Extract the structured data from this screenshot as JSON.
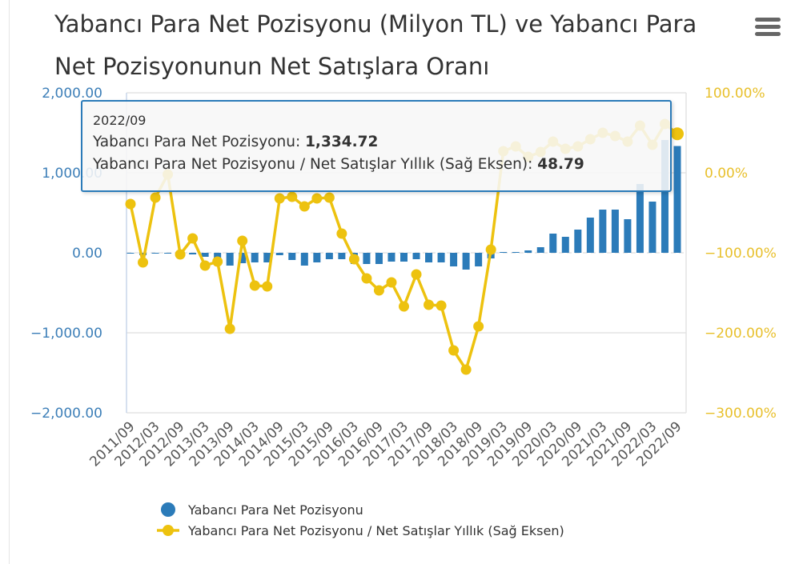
{
  "chart_data": {
    "type": "bar+line",
    "title": "Yabancı Para Net Pozisyonu (Milyon TL) ve Yabancı Para Net Pozisyonunun Net Satışlara Oranı",
    "categories": [
      "2011/09",
      "2011/12",
      "2012/03",
      "2012/06",
      "2012/09",
      "2012/12",
      "2013/03",
      "2013/06",
      "2013/09",
      "2013/12",
      "2014/03",
      "2014/06",
      "2014/09",
      "2014/12",
      "2015/03",
      "2015/06",
      "2015/09",
      "2015/12",
      "2016/03",
      "2016/06",
      "2016/09",
      "2016/12",
      "2017/03",
      "2017/06",
      "2017/09",
      "2017/12",
      "2018/03",
      "2018/06",
      "2018/09",
      "2018/12",
      "2019/03",
      "2019/06",
      "2019/09",
      "2019/12",
      "2020/03",
      "2020/06",
      "2020/09",
      "2020/12",
      "2021/03",
      "2021/06",
      "2021/09",
      "2021/12",
      "2022/03",
      "2022/06",
      "2022/09"
    ],
    "x_tick_labels": [
      "2011/09",
      "2012/03",
      "2012/09",
      "2013/03",
      "2013/09",
      "2014/03",
      "2014/09",
      "2015/03",
      "2015/09",
      "2016/03",
      "2016/09",
      "2017/03",
      "2017/09",
      "2018/03",
      "2018/09",
      "2019/03",
      "2019/09",
      "2020/03",
      "2020/09",
      "2021/03",
      "2021/09",
      "2022/03",
      "2022/09"
    ],
    "left_axis": {
      "ylim": [
        -2000,
        2000
      ],
      "ticks": [
        "2,000.00",
        "1,000.00",
        "0.00",
        "−1,000.00",
        "−2,000.00"
      ],
      "color": "#3d7fb8"
    },
    "right_axis": {
      "ylim": [
        -300,
        100
      ],
      "ticks": [
        "100.00%",
        "0.00%",
        "−100.00%",
        "−200.00%",
        "−300.00%"
      ],
      "color": "#e8c02c"
    },
    "series": [
      {
        "name": "Yabancı Para Net Pozisyonu",
        "type": "bar",
        "axis": "left",
        "color": "#2b7bb9",
        "values": [
          -10,
          -30,
          0,
          0,
          -10,
          -20,
          -50,
          -100,
          -160,
          -130,
          -120,
          -120,
          -30,
          -90,
          -160,
          -120,
          -80,
          -80,
          -140,
          -140,
          -140,
          -110,
          -110,
          -80,
          -120,
          -120,
          -170,
          -210,
          -170,
          -70,
          10,
          10,
          30,
          70,
          240,
          200,
          290,
          440,
          540,
          540,
          420,
          860,
          640,
          1410,
          1334.72
        ]
      },
      {
        "name": "Yabancı Para Net Pozisyonu / Net Satışlar Yıllık (Sağ Eksen)",
        "type": "line",
        "axis": "right",
        "color": "#edc20f",
        "values": [
          -39,
          -112,
          -31,
          -2,
          -102,
          -82,
          -116,
          -111,
          -195,
          -85,
          -141,
          -142,
          -32,
          -30,
          -42,
          -32,
          -31,
          -76,
          -108,
          -132,
          -147,
          -137,
          -167,
          -127,
          -165,
          -166,
          -222,
          -246,
          -192,
          -96,
          27,
          33,
          20,
          26,
          39,
          30,
          33,
          42,
          50,
          46,
          39,
          59,
          35,
          61,
          48.79
        ]
      }
    ],
    "legend_position": "bottom",
    "grid": true
  },
  "tooltip": {
    "date": "2022/09",
    "row1_label": "Yabancı Para Net Pozisyonu: ",
    "row1_value": "1,334.72",
    "row2_label": "Yabancı Para Net Pozisyonu / Net Satışlar Yıllık (Sağ Eksen): ",
    "row2_value": "48.79"
  },
  "menu_icon": "hamburger-menu-icon"
}
